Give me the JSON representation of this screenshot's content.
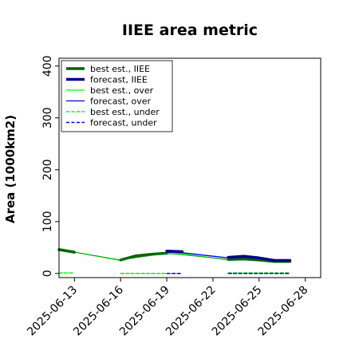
{
  "chart_data": {
    "type": "line",
    "title": "IIEE area metric",
    "xlabel": "",
    "ylabel": "Area (1000km2)",
    "xlim": [
      "2025-06-12",
      "2025-06-29"
    ],
    "ylim": [
      -8,
      415
    ],
    "yticks": [
      0,
      100,
      200,
      300,
      400
    ],
    "xticks": [
      "2025-06-13",
      "2025-06-16",
      "2025-06-19",
      "2025-06-22",
      "2025-06-25",
      "2025-06-28"
    ],
    "highlighted_xtick": "2025-06-19",
    "highlight_color": "#228b22",
    "grid": false,
    "legend_position": "top-left",
    "series": [
      {
        "name": "best est., IIEE",
        "color": "#006400",
        "style": "solid-thick",
        "segments": [
          [
            [
              "2025-06-12",
              46
            ],
            [
              "2025-06-13",
              41
            ]
          ],
          [
            [
              "2025-06-16",
              26
            ],
            [
              "2025-06-17",
              34
            ],
            [
              "2025-06-18",
              37
            ],
            [
              "2025-06-19",
              39
            ]
          ],
          [
            [
              "2025-06-23",
              27
            ],
            [
              "2025-06-24",
              28
            ],
            [
              "2025-06-25",
              26
            ],
            [
              "2025-06-26",
              23
            ],
            [
              "2025-06-27",
              23
            ]
          ]
        ]
      },
      {
        "name": "forecast, IIEE",
        "color": "#00008b",
        "style": "solid-thick",
        "segments": [
          [
            [
              "2025-06-19",
              43
            ],
            [
              "2025-06-20",
              42
            ]
          ],
          [
            [
              "2025-06-23",
              31
            ],
            [
              "2025-06-24",
              33
            ],
            [
              "2025-06-25",
              30
            ],
            [
              "2025-06-26",
              25
            ],
            [
              "2025-06-27",
              25
            ]
          ]
        ]
      },
      {
        "name": "best est., over",
        "color": "#00ff00",
        "style": "solid-thin",
        "segments": [
          [
            [
              "2025-06-12",
              45
            ],
            [
              "2025-06-13",
              41
            ],
            [
              "2025-06-16",
              25
            ],
            [
              "2025-06-17",
              33
            ],
            [
              "2025-06-18",
              36
            ],
            [
              "2025-06-19",
              38
            ],
            [
              "2025-06-20",
              38
            ],
            [
              "2025-06-23",
              26
            ],
            [
              "2025-06-24",
              27
            ],
            [
              "2025-06-25",
              25
            ],
            [
              "2025-06-26",
              22
            ],
            [
              "2025-06-27",
              22
            ]
          ]
        ]
      },
      {
        "name": "forecast, over",
        "color": "#0000ff",
        "style": "solid-thin",
        "segments": [
          [
            [
              "2025-06-19",
              41
            ],
            [
              "2025-06-20",
              40
            ],
            [
              "2025-06-23",
              30
            ],
            [
              "2025-06-24",
              31
            ],
            [
              "2025-06-25",
              29
            ],
            [
              "2025-06-26",
              24
            ],
            [
              "2025-06-27",
              24
            ]
          ]
        ]
      },
      {
        "name": "best est., under",
        "color": "#00ff00",
        "style": "dashed",
        "segments": [
          [
            [
              "2025-06-12",
              1
            ],
            [
              "2025-06-13",
              1
            ]
          ],
          [
            [
              "2025-06-16",
              0
            ],
            [
              "2025-06-17",
              0
            ],
            [
              "2025-06-18",
              0
            ],
            [
              "2025-06-19",
              0
            ]
          ],
          [
            [
              "2025-06-23",
              1
            ],
            [
              "2025-06-24",
              1
            ],
            [
              "2025-06-25",
              1
            ],
            [
              "2025-06-26",
              1
            ],
            [
              "2025-06-27",
              1
            ]
          ]
        ]
      },
      {
        "name": "forecast, under",
        "color": "#0000ff",
        "style": "dashed",
        "segments": [
          [
            [
              "2025-06-19",
              0
            ],
            [
              "2025-06-20",
              0
            ]
          ],
          [
            [
              "2025-06-23",
              0
            ],
            [
              "2025-06-24",
              0
            ],
            [
              "2025-06-25",
              0
            ],
            [
              "2025-06-26",
              0
            ],
            [
              "2025-06-27",
              0
            ]
          ]
        ]
      }
    ],
    "connector": {
      "color": "#228b22",
      "points": [
        [
          "2025-06-13",
          41
        ],
        [
          "2025-06-16",
          26
        ],
        [
          "2025-06-19",
          39
        ],
        [
          "2025-06-23",
          27
        ]
      ]
    }
  }
}
